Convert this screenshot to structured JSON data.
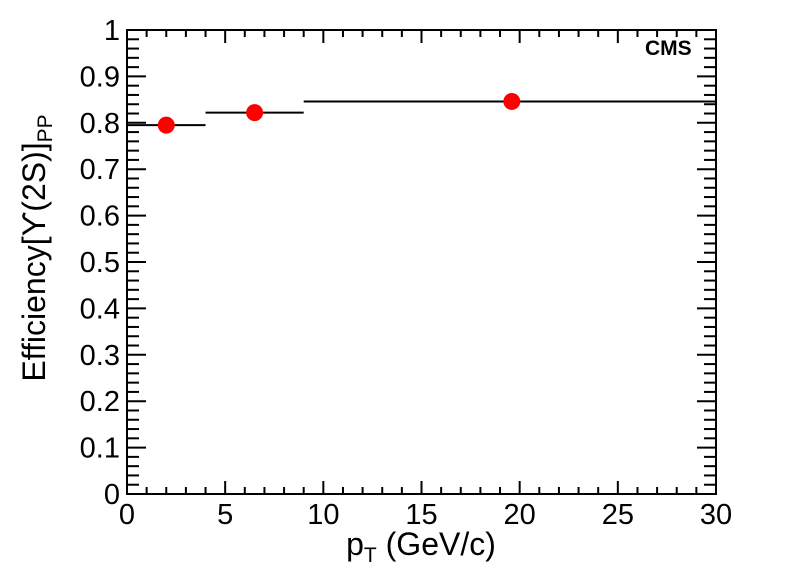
{
  "experiment_label": "CMS",
  "axes": {
    "x": {
      "title_main": "p",
      "title_sub": "T",
      "title_rest": " (GeV/c)"
    },
    "y": {
      "title_main": "Efficiency[ϒ(2S)]",
      "title_sub": "PP"
    }
  },
  "colors": {
    "background": "#ffffff",
    "axis": "#000000",
    "marker": "#ff0000",
    "error_bar": "#000000"
  },
  "chart_data": {
    "type": "scatter",
    "title": "",
    "xlabel": "p_T (GeV/c)",
    "ylabel": "Efficiency[Upsilon(2S)]_PP",
    "xlim": [
      0,
      30
    ],
    "ylim": [
      0,
      1
    ],
    "grid": false,
    "ticks_mirrored": true,
    "legend": null,
    "annotations": [
      "CMS"
    ],
    "x_major_ticks": [
      0,
      5,
      10,
      15,
      20,
      25,
      30
    ],
    "x_tick_labels": [
      "0",
      "5",
      "10",
      "15",
      "20",
      "25",
      "30"
    ],
    "x_minor_tick_step": 1,
    "y_major_ticks": [
      0,
      0.1,
      0.2,
      0.3,
      0.4,
      0.5,
      0.6,
      0.7,
      0.8,
      0.9,
      1
    ],
    "y_tick_labels": [
      "0",
      "0.1",
      "0.2",
      "0.3",
      "0.4",
      "0.5",
      "0.6",
      "0.7",
      "0.8",
      "0.9",
      "1"
    ],
    "y_minor_tick_step": 0.02,
    "series": [
      {
        "name": "Upsilon(2S) efficiency (PP)",
        "marker": "filled-circle",
        "marker_color": "#ff0000",
        "error_bar_color": "#000000",
        "points": [
          {
            "x": 2.0,
            "y": 0.795,
            "xlow": 0,
            "xhigh": 4
          },
          {
            "x": 6.5,
            "y": 0.822,
            "xlow": 4,
            "xhigh": 9
          },
          {
            "x": 19.6,
            "y": 0.846,
            "xlow": 9,
            "xhigh": 30
          }
        ]
      }
    ]
  }
}
